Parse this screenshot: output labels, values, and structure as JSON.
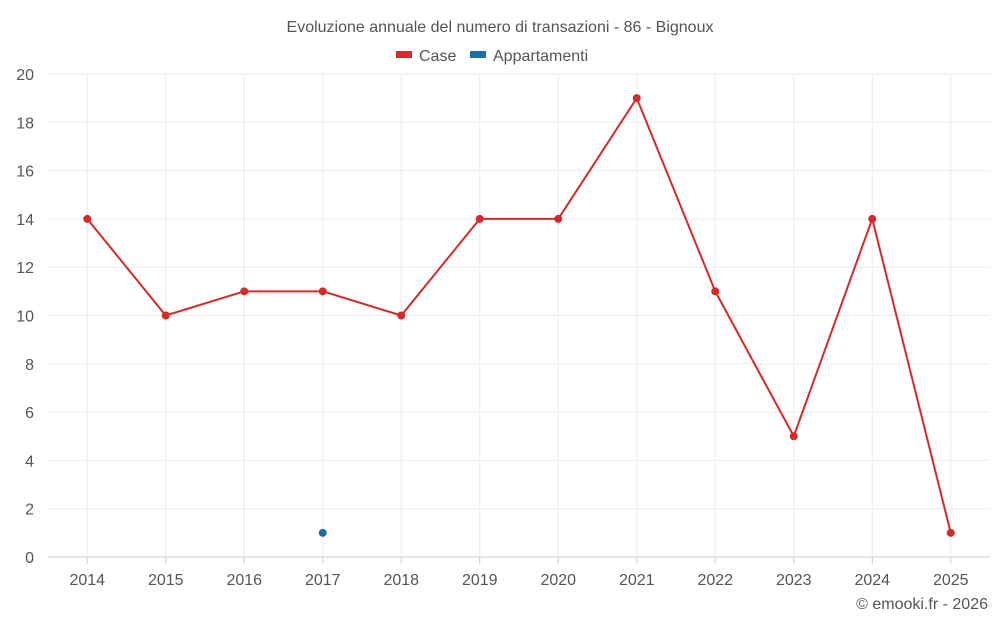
{
  "chart_data": {
    "type": "line",
    "title": "Evoluzione annuale del numero di transazioni - 86 - Bignoux",
    "categories": [
      "2014",
      "2015",
      "2016",
      "2017",
      "2018",
      "2019",
      "2020",
      "2021",
      "2022",
      "2023",
      "2024",
      "2025"
    ],
    "series": [
      {
        "name": "Case",
        "color": "#d42a2a",
        "values": [
          14,
          10,
          11,
          11,
          10,
          14,
          14,
          19,
          11,
          5,
          14,
          1
        ]
      },
      {
        "name": "Appartamenti",
        "color": "#1f6fa5",
        "values": [
          null,
          null,
          null,
          1,
          null,
          null,
          null,
          null,
          null,
          null,
          null,
          null
        ]
      }
    ],
    "yticks": [
      "0",
      "2",
      "4",
      "6",
      "8",
      "10",
      "12",
      "14",
      "16",
      "18",
      "20"
    ],
    "ylim": [
      0,
      20
    ],
    "xlabel": "",
    "ylabel": "",
    "grid": true,
    "legend_position": "top-center"
  },
  "credit": "© emooki.fr - 2026"
}
